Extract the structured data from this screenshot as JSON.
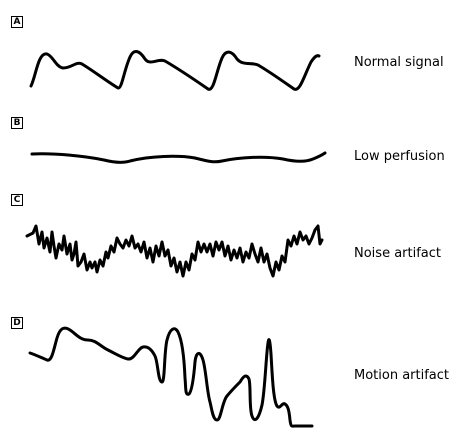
{
  "panels": [
    {
      "letter": "A",
      "label": "Normal signal",
      "waveform": "smooth periodic pulse wave with dicrotic notch"
    },
    {
      "letter": "B",
      "label": "Low perfusion",
      "waveform": "flat low-amplitude undulating wave"
    },
    {
      "letter": "C",
      "label": "Noise artifact",
      "waveform": "jagged high-frequency noisy trace"
    },
    {
      "letter": "D",
      "label": "Motion artifact",
      "waveform": "irregular trace with large erratic swings"
    }
  ],
  "colors": {
    "stroke": "#000000",
    "background": "#ffffff"
  }
}
